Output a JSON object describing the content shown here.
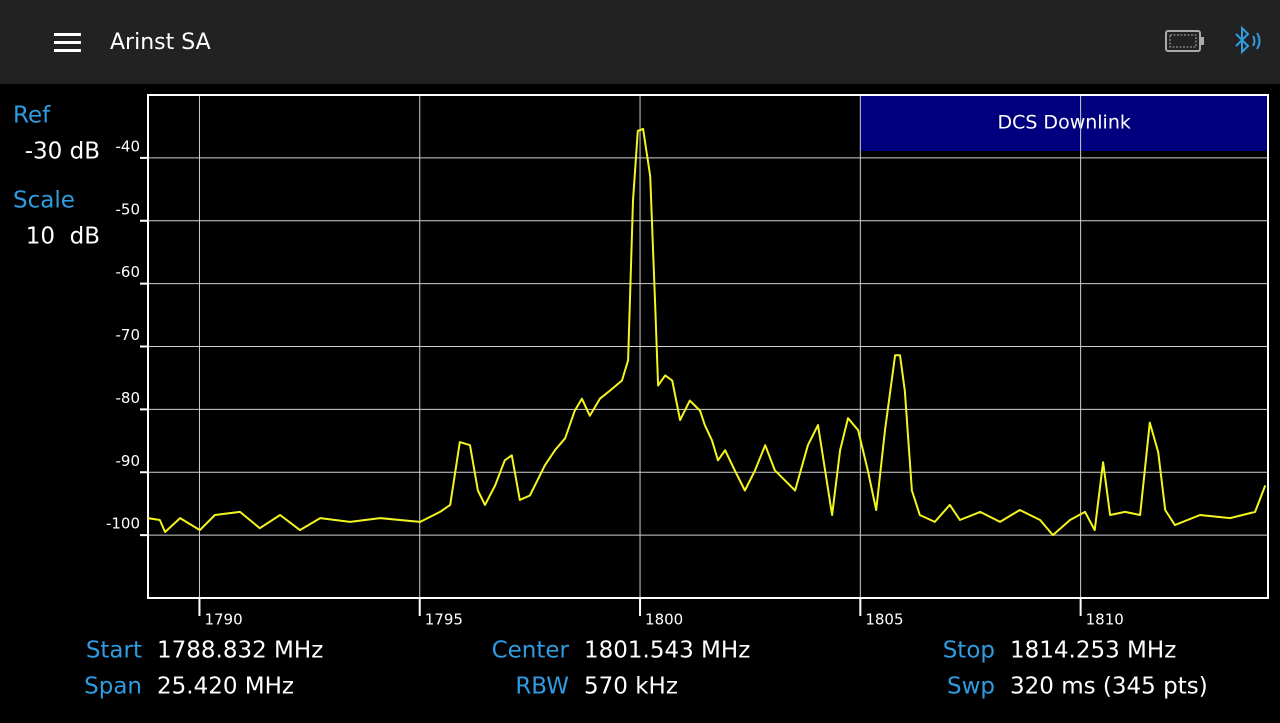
{
  "header": {
    "title": "Arinst SA"
  },
  "side": {
    "ref_label": "Ref",
    "ref_value": "-30 dB",
    "scale_label": "Scale",
    "scale_value": "10  dB"
  },
  "chart_data": {
    "type": "line",
    "x": [
      1788.83,
      1789.1,
      1789.22,
      1789.56,
      1790.01,
      1790.35,
      1790.92,
      1791.37,
      1791.83,
      1792.28,
      1792.74,
      1793.42,
      1794.1,
      1794.55,
      1795.01,
      1795.46,
      1795.69,
      1795.91,
      1796.14,
      1796.32,
      1796.48,
      1796.71,
      1796.93,
      1797.09,
      1797.27,
      1797.5,
      1797.84,
      1798.07,
      1798.3,
      1798.52,
      1798.68,
      1798.86,
      1799.09,
      1799.32,
      1799.59,
      1799.73,
      1799.84,
      1799.95,
      1800.07,
      1800.23,
      1800.34,
      1800.41,
      1800.57,
      1800.73,
      1800.91,
      1801.13,
      1801.36,
      1801.47,
      1801.63,
      1801.77,
      1801.93,
      1802.15,
      1802.38,
      1802.61,
      1802.84,
      1803.06,
      1803.29,
      1803.52,
      1803.81,
      1804.04,
      1804.2,
      1804.36,
      1804.54,
      1804.72,
      1804.95,
      1805.17,
      1805.36,
      1805.56,
      1805.79,
      1805.9,
      1806.01,
      1806.17,
      1806.35,
      1806.69,
      1807.03,
      1807.26,
      1807.72,
      1808.17,
      1808.62,
      1809.08,
      1809.37,
      1809.76,
      1810.1,
      1810.32,
      1810.51,
      1810.67,
      1811.01,
      1811.35,
      1811.57,
      1811.76,
      1811.92,
      1812.14,
      1812.71,
      1813.39,
      1813.96,
      1814.19
    ],
    "values": [
      -97.3,
      -97.6,
      -99.5,
      -97.3,
      -99.2,
      -96.8,
      -96.3,
      -98.9,
      -96.8,
      -99.2,
      -97.3,
      -97.9,
      -97.3,
      -97.6,
      -97.9,
      -96.3,
      -95.2,
      -85.2,
      -85.7,
      -92.9,
      -95.2,
      -92.1,
      -88.1,
      -87.3,
      -94.4,
      -93.7,
      -88.9,
      -86.5,
      -84.6,
      -80.2,
      -78.3,
      -81.0,
      -78.3,
      -77.0,
      -75.4,
      -72.2,
      -46.8,
      -35.7,
      -35.4,
      -42.9,
      -62.7,
      -76.2,
      -74.6,
      -75.4,
      -81.7,
      -78.6,
      -80.2,
      -82.5,
      -84.9,
      -88.1,
      -86.5,
      -89.7,
      -92.9,
      -89.7,
      -85.7,
      -89.7,
      -91.3,
      -92.9,
      -85.7,
      -82.5,
      -89.7,
      -96.8,
      -86.5,
      -81.4,
      -83.3,
      -89.7,
      -96.0,
      -83.3,
      -71.4,
      -71.4,
      -77.0,
      -92.9,
      -96.8,
      -97.9,
      -95.2,
      -97.6,
      -96.3,
      -97.9,
      -96.0,
      -97.6,
      -100.0,
      -97.6,
      -96.3,
      -99.2,
      -88.4,
      -96.8,
      -96.3,
      -96.8,
      -82.1,
      -86.8,
      -96.0,
      -98.4,
      -96.8,
      -97.3,
      -96.3,
      -92.1
    ],
    "color": "#f5f51e",
    "xlim": [
      1788.832,
      1814.253
    ],
    "ylim": [
      -110,
      -30
    ],
    "xticks": [
      1790,
      1795,
      1800,
      1805,
      1810
    ],
    "yticks": [
      -100,
      -90,
      -80,
      -70,
      -60,
      -50,
      -40
    ],
    "grid": true,
    "band": {
      "label": "DCS Downlink",
      "start": 1805,
      "color": "#00007f"
    }
  },
  "params": [
    {
      "label": "Start",
      "value": "1788.832 MHz"
    },
    {
      "label": "Center",
      "value": "1801.543 MHz"
    },
    {
      "label": "Stop",
      "value": "1814.253 MHz"
    },
    {
      "label": "Span",
      "value": "25.420 MHz"
    },
    {
      "label": "RBW",
      "value": "570 kHz"
    },
    {
      "label": "Swp",
      "value": "320 ms (345 pts)"
    }
  ]
}
